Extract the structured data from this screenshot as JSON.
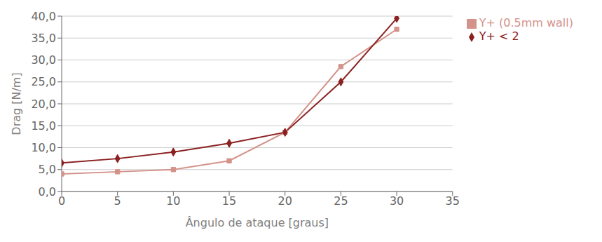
{
  "chart_data": {
    "type": "line",
    "x": [
      0,
      5,
      10,
      15,
      20,
      25,
      30
    ],
    "series": [
      {
        "name": "Y+ (0.5mm wall)",
        "color": "#D4938A",
        "marker": "square",
        "line_style": "solid",
        "values": [
          4.0,
          4.5,
          5.0,
          7.0,
          13.5,
          28.5,
          37.0
        ]
      },
      {
        "name": "Y+ < 2",
        "color": "#8B2020",
        "marker": "diamond",
        "line_style": "solid",
        "values": [
          6.5,
          7.5,
          9.0,
          11.0,
          13.5,
          25.0,
          39.5
        ]
      }
    ],
    "xlabel": "Ângulo de ataque [graus]",
    "ylabel": "Drag [N/m]",
    "xlim": [
      0,
      35
    ],
    "ylim": [
      0,
      40
    ],
    "xticks": [
      0,
      5,
      10,
      15,
      20,
      25,
      30,
      35
    ],
    "yticks": [
      {
        "value": 0.0,
        "label": "0,0"
      },
      {
        "value": 5.0,
        "label": "5,0"
      },
      {
        "value": 10.0,
        "label": "10,0"
      },
      {
        "value": 15.0,
        "label": "15,0"
      },
      {
        "value": 20.0,
        "label": "20,0"
      },
      {
        "value": 25.0,
        "label": "25,0"
      },
      {
        "value": 30.0,
        "label": "30,0"
      },
      {
        "value": 35.0,
        "label": "35,0"
      },
      {
        "value": 40.0,
        "label": "40,0"
      }
    ],
    "grid": true,
    "legend": "right"
  }
}
